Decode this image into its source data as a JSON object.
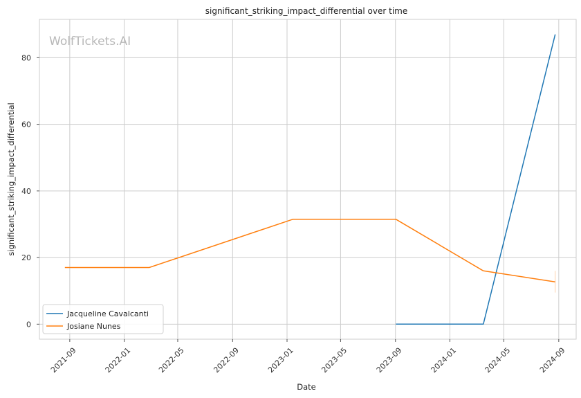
{
  "chart_data": {
    "type": "line",
    "title": "significant_striking_impact_differential over time",
    "xlabel": "Date",
    "ylabel": "significant_striking_impact_differential",
    "watermark": "WolfTickets.AI",
    "x_type": "date",
    "xlim": [
      "2021-06-25",
      "2024-10-10"
    ],
    "ylim": [
      -4.5,
      91.5
    ],
    "x_ticks": [
      "2021-09",
      "2022-01",
      "2022-05",
      "2022-09",
      "2023-01",
      "2023-05",
      "2023-09",
      "2024-01",
      "2024-05",
      "2024-09"
    ],
    "y_ticks": [
      0,
      20,
      40,
      60,
      80
    ],
    "grid": true,
    "legend_position": "lower-left",
    "series": [
      {
        "name": "Jacqueline Cavalcanti",
        "color": "#1f77b4",
        "points": [
          {
            "x": "2023-09-02",
            "y": 0
          },
          {
            "x": "2024-03-16",
            "y": 0
          },
          {
            "x": "2024-08-24",
            "y": 87
          }
        ]
      },
      {
        "name": "Josiane Nunes",
        "color": "#ff7f0e",
        "points": [
          {
            "x": "2021-08-21",
            "y": 17
          },
          {
            "x": "2022-02-26",
            "y": 17
          },
          {
            "x": "2023-01-14",
            "y": 31.5
          },
          {
            "x": "2023-09-02",
            "y": 31.5
          },
          {
            "x": "2024-03-16",
            "y": 16
          },
          {
            "x": "2024-08-24",
            "y": 12.7
          }
        ],
        "error_bar": {
          "x": "2024-08-24",
          "low": 9.5,
          "high": 16
        }
      }
    ]
  }
}
